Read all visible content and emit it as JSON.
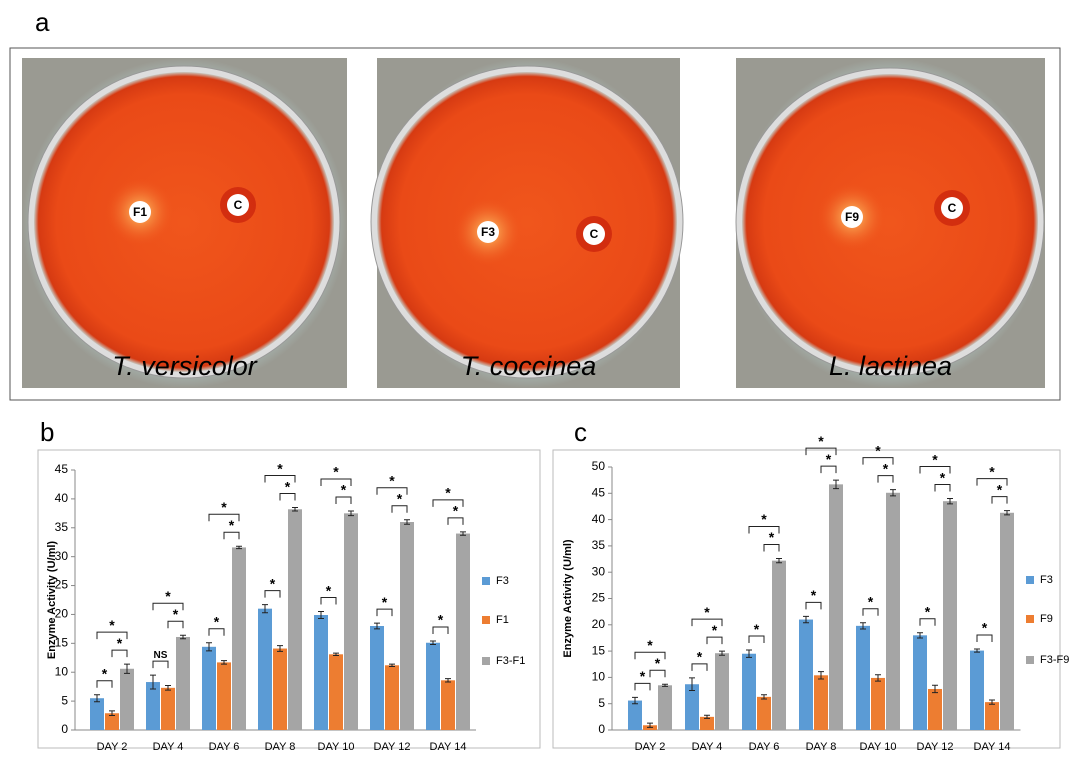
{
  "panels": {
    "a": {
      "label": "a",
      "plates": [
        {
          "species": "T. versicolor",
          "markers": [
            "F1",
            "C"
          ]
        },
        {
          "species": "T. coccinea",
          "markers": [
            "F3",
            "C"
          ]
        },
        {
          "species": "L. lactinea",
          "markers": [
            "F9",
            "C"
          ]
        }
      ]
    }
  },
  "chart_data": [
    {
      "type": "bar",
      "panel_label": "b",
      "y_label": "Enzyme Activity (U/ml)",
      "categories": [
        "DAY 2",
        "DAY 4",
        "DAY 6",
        "DAY 8",
        "DAY 10",
        "DAY 12",
        "DAY 14"
      ],
      "series": [
        {
          "name": "F3",
          "color": "#5b9bd5",
          "values": [
            5.5,
            8.3,
            14.4,
            21,
            19.9,
            18,
            15.1
          ],
          "errors": [
            0.6,
            1.2,
            0.7,
            0.7,
            0.6,
            0.5,
            0.3
          ]
        },
        {
          "name": "F1",
          "color": "#ed7d31",
          "values": [
            2.9,
            7.3,
            11.7,
            14.1,
            13.1,
            11.2,
            8.6
          ],
          "errors": [
            0.4,
            0.4,
            0.3,
            0.5,
            0.2,
            0.2,
            0.3
          ]
        },
        {
          "name": "F3-F1",
          "color": "#a5a5a5",
          "values": [
            10.6,
            16.1,
            31.6,
            38.2,
            37.5,
            36,
            34
          ],
          "errors": [
            0.8,
            0.3,
            0.2,
            0.3,
            0.4,
            0.4,
            0.3
          ]
        }
      ],
      "significance": [
        [
          "*",
          "*",
          "*"
        ],
        [
          "NS",
          "*",
          "*"
        ],
        [
          "*",
          "*",
          "*"
        ],
        [
          "*",
          "*",
          "*"
        ],
        [
          "*",
          "*",
          "*"
        ],
        [
          "*",
          "*",
          "*"
        ],
        [
          "*",
          "*",
          "*"
        ]
      ],
      "ylim": [
        0,
        45
      ],
      "yticks": [
        0,
        5,
        10,
        15,
        20,
        25,
        30,
        35,
        40,
        45
      ],
      "grid": false,
      "legend": "right"
    },
    {
      "type": "bar",
      "panel_label": "c",
      "y_label": "Enzyme Activity (U/ml)",
      "categories": [
        "DAY 2",
        "DAY 4",
        "DAY 6",
        "DAY 8",
        "DAY 10",
        "DAY 12",
        "DAY 14"
      ],
      "series": [
        {
          "name": "F3",
          "color": "#5b9bd5",
          "values": [
            5.6,
            8.7,
            14.5,
            21,
            19.8,
            18,
            15.1
          ],
          "errors": [
            0.6,
            1.2,
            0.7,
            0.6,
            0.6,
            0.5,
            0.3
          ]
        },
        {
          "name": "F9",
          "color": "#ed7d31",
          "values": [
            0.9,
            2.5,
            6.3,
            10.4,
            9.9,
            7.8,
            5.3
          ],
          "errors": [
            0.4,
            0.3,
            0.4,
            0.7,
            0.6,
            0.7,
            0.4
          ]
        },
        {
          "name": "F3-F9",
          "color": "#a5a5a5",
          "values": [
            8.5,
            14.6,
            32.2,
            46.7,
            45.1,
            43.5,
            41.3
          ],
          "errors": [
            0.2,
            0.4,
            0.4,
            0.8,
            0.6,
            0.5,
            0.4
          ]
        }
      ],
      "significance": [
        [
          "*",
          "*",
          "*"
        ],
        [
          "*",
          "*",
          "*"
        ],
        [
          "*",
          "*",
          "*"
        ],
        [
          "*",
          "*",
          "*"
        ],
        [
          "*",
          "*",
          "*"
        ],
        [
          "*",
          "*",
          "*"
        ],
        [
          "*",
          "*",
          "*"
        ]
      ],
      "ylim": [
        0,
        50
      ],
      "yticks": [
        0,
        5,
        10,
        15,
        20,
        25,
        30,
        35,
        40,
        45,
        50
      ],
      "grid": false,
      "legend": "right"
    }
  ]
}
